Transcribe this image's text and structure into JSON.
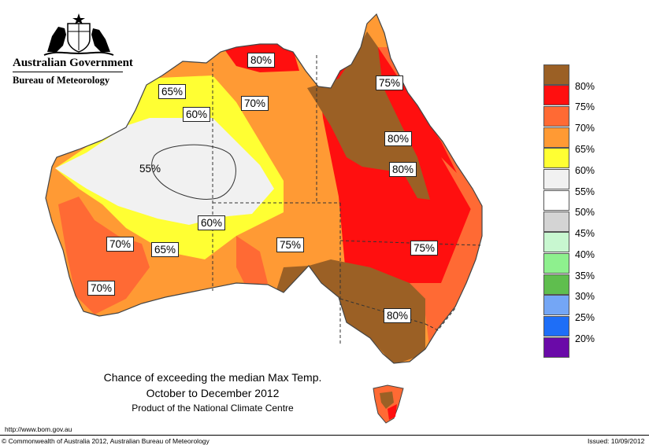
{
  "agency": {
    "government": "Australian Government",
    "bureau": "Bureau of Meteorology"
  },
  "legend": [
    {
      "label": "80%",
      "color": "#9b6025"
    },
    {
      "label": "75%",
      "color": "#ff0f0f"
    },
    {
      "label": "70%",
      "color": "#ff6a34"
    },
    {
      "label": "65%",
      "color": "#ff9a34"
    },
    {
      "label": "60%",
      "color": "#ffff33"
    },
    {
      "label": "55%",
      "color": "#f1f1f1"
    },
    {
      "label": "50%",
      "color": "#ffffff"
    },
    {
      "label": "45%",
      "color": "#d4d4d4"
    },
    {
      "label": "40%",
      "color": "#c8f7d0"
    },
    {
      "label": "35%",
      "color": "#8ef08e"
    },
    {
      "label": "30%",
      "color": "#5fbe4e"
    },
    {
      "label": "25%",
      "color": "#74a6f5"
    },
    {
      "label": "20%",
      "color": "#1e6ef7"
    },
    {
      "label": "",
      "color": "#6a0aa8"
    }
  ],
  "map_labels": [
    "80%",
    "75%",
    "65%",
    "70%",
    "60%",
    "80%",
    "55%",
    "80%",
    "60%",
    "70%",
    "65%",
    "75%",
    "75%",
    "70%",
    "80%"
  ],
  "caption": {
    "line1": "Chance of exceeding the median Max Temp.",
    "line2": "October to December 2012",
    "line3": "Product of the National Climate Centre"
  },
  "footer": {
    "url": "http://www.bom.gov.au",
    "copyright": "© Commonwealth of Australia 2012, Australian Bureau of Meteorology",
    "issued": "Issued: 10/09/2012"
  }
}
